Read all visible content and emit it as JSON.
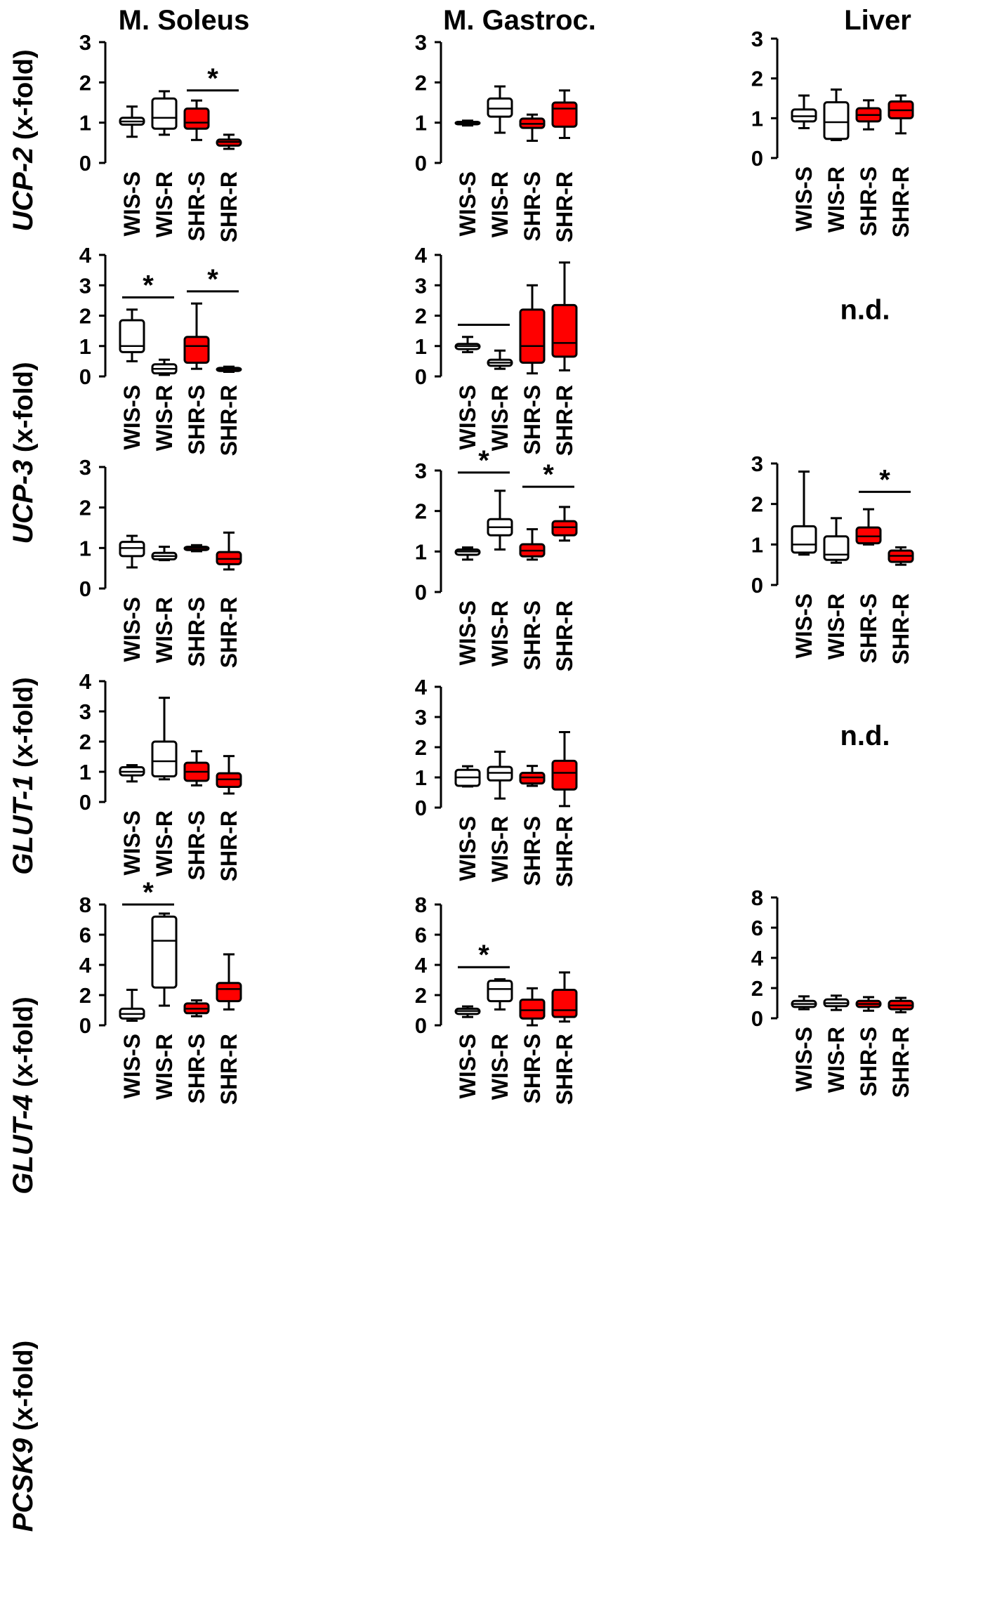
{
  "chart_data": {
    "type": "boxplot",
    "columns": [
      "M. Soleus",
      "M. Gastroc.",
      "Liver"
    ],
    "categories": [
      "WIS-S",
      "WIS-R",
      "SHR-S",
      "SHR-R"
    ],
    "category_colors": [
      "#ffffff",
      "#ffffff",
      "#ff0000",
      "#ff0000"
    ],
    "rows": [
      {
        "gene": "UCP-2",
        "unit": " (x-fold)",
        "ylim": [
          0,
          3
        ],
        "ticks": [
          0,
          1,
          2,
          3
        ]
      },
      {
        "gene": "UCP-3",
        "unit": " (x-fold)",
        "ylim": [
          0,
          4
        ],
        "ticks": [
          0,
          1,
          2,
          3,
          4
        ]
      },
      {
        "gene": "GLUT-1",
        "unit": " (x-fold)",
        "ylim": [
          0,
          3
        ],
        "ticks": [
          0,
          1,
          2,
          3
        ]
      },
      {
        "gene": "GLUT-4",
        "unit": " (x-fold)",
        "ylim": [
          0,
          4
        ],
        "ticks": [
          0,
          1,
          2,
          3,
          4
        ]
      },
      {
        "gene": "PCSK9",
        "unit": " (x-fold)",
        "ylim": [
          0,
          8
        ],
        "ticks": [
          0,
          2,
          4,
          6,
          8
        ]
      }
    ],
    "panels": [
      {
        "row": 0,
        "col": 0,
        "ylim": [
          0,
          3
        ],
        "ticks": [
          0,
          1,
          2,
          3
        ],
        "boxes": [
          {
            "category": "WIS-S",
            "min": 0.65,
            "q1": 0.95,
            "median": 1.03,
            "q3": 1.12,
            "max": 1.4
          },
          {
            "category": "WIS-R",
            "min": 0.7,
            "q1": 0.85,
            "median": 1.12,
            "q3": 1.6,
            "max": 1.78
          },
          {
            "category": "SHR-S",
            "min": 0.57,
            "q1": 0.85,
            "median": 1.0,
            "q3": 1.35,
            "max": 1.55
          },
          {
            "category": "SHR-R",
            "min": 0.35,
            "q1": 0.43,
            "median": 0.52,
            "q3": 0.58,
            "max": 0.7
          }
        ],
        "significance": [
          {
            "from": "SHR-S",
            "to": "SHR-R",
            "y": 1.8,
            "label": "*"
          }
        ]
      },
      {
        "row": 0,
        "col": 1,
        "ylim": [
          0,
          3
        ],
        "ticks": [
          0,
          1,
          2,
          3
        ],
        "boxes": [
          {
            "category": "WIS-S",
            "min": 0.93,
            "q1": 0.96,
            "median": 1.0,
            "q3": 1.02,
            "max": 1.05
          },
          {
            "category": "WIS-R",
            "min": 0.75,
            "q1": 1.15,
            "median": 1.35,
            "q3": 1.6,
            "max": 1.9
          },
          {
            "category": "SHR-S",
            "min": 0.55,
            "q1": 0.87,
            "median": 0.97,
            "q3": 1.1,
            "max": 1.2
          },
          {
            "category": "SHR-R",
            "min": 0.62,
            "q1": 0.9,
            "median": 1.35,
            "q3": 1.5,
            "max": 1.8
          }
        ],
        "significance": []
      },
      {
        "row": 0,
        "col": 2,
        "ylim": [
          0,
          3
        ],
        "ticks": [
          0,
          1,
          2,
          3
        ],
        "boxes": [
          {
            "category": "WIS-S",
            "min": 0.75,
            "q1": 0.92,
            "median": 1.05,
            "q3": 1.22,
            "max": 1.57
          },
          {
            "category": "WIS-R",
            "min": 0.45,
            "q1": 0.48,
            "median": 0.9,
            "q3": 1.4,
            "max": 1.72
          },
          {
            "category": "SHR-S",
            "min": 0.72,
            "q1": 0.92,
            "median": 1.08,
            "q3": 1.25,
            "max": 1.45
          },
          {
            "category": "SHR-R",
            "min": 0.62,
            "q1": 1.0,
            "median": 1.2,
            "q3": 1.42,
            "max": 1.57
          }
        ],
        "significance": []
      },
      {
        "row": 1,
        "col": 0,
        "ylim": [
          0,
          4
        ],
        "ticks": [
          0,
          1,
          2,
          3,
          4
        ],
        "boxes": [
          {
            "category": "WIS-S",
            "min": 0.5,
            "q1": 0.8,
            "median": 1.0,
            "q3": 1.85,
            "max": 2.2
          },
          {
            "category": "WIS-R",
            "min": 0.05,
            "q1": 0.1,
            "median": 0.25,
            "q3": 0.4,
            "max": 0.55
          },
          {
            "category": "SHR-S",
            "min": 0.25,
            "q1": 0.45,
            "median": 1.0,
            "q3": 1.3,
            "max": 2.4
          },
          {
            "category": "SHR-R",
            "min": 0.15,
            "q1": 0.18,
            "median": 0.24,
            "q3": 0.28,
            "max": 0.32
          }
        ],
        "significance": [
          {
            "from": "WIS-S",
            "to": "WIS-R",
            "y": 2.6,
            "label": "*"
          },
          {
            "from": "SHR-S",
            "to": "SHR-R",
            "y": 2.8,
            "label": "*"
          }
        ]
      },
      {
        "row": 1,
        "col": 1,
        "ylim": [
          0,
          4
        ],
        "ticks": [
          0,
          1,
          2,
          3,
          4
        ],
        "boxes": [
          {
            "category": "WIS-S",
            "min": 0.8,
            "q1": 0.9,
            "median": 1.0,
            "q3": 1.07,
            "max": 1.3
          },
          {
            "category": "WIS-R",
            "min": 0.25,
            "q1": 0.35,
            "median": 0.45,
            "q3": 0.55,
            "max": 0.85
          },
          {
            "category": "SHR-S",
            "min": 0.1,
            "q1": 0.45,
            "median": 1.0,
            "q3": 2.2,
            "max": 3.0
          },
          {
            "category": "SHR-R",
            "min": 0.2,
            "q1": 0.65,
            "median": 1.1,
            "q3": 2.35,
            "max": 3.75
          }
        ],
        "significance": [
          {
            "from": "WIS-S",
            "to": "WIS-R",
            "y": 1.7,
            "label": ""
          }
        ]
      },
      {
        "row": 1,
        "col": 2,
        "na": "n.d."
      },
      {
        "row": 2,
        "col": 0,
        "ylim": [
          0,
          3
        ],
        "ticks": [
          0,
          1,
          2,
          3
        ],
        "boxes": [
          {
            "category": "WIS-S",
            "min": 0.52,
            "q1": 0.8,
            "median": 1.0,
            "q3": 1.15,
            "max": 1.3
          },
          {
            "category": "WIS-R",
            "min": 0.7,
            "q1": 0.72,
            "median": 0.8,
            "q3": 0.88,
            "max": 1.03
          },
          {
            "category": "SHR-S",
            "min": 0.92,
            "q1": 0.95,
            "median": 1.0,
            "q3": 1.03,
            "max": 1.07
          },
          {
            "category": "SHR-R",
            "min": 0.47,
            "q1": 0.6,
            "median": 0.73,
            "q3": 0.9,
            "max": 1.38
          }
        ],
        "significance": []
      },
      {
        "row": 2,
        "col": 1,
        "ylim": [
          0,
          3
        ],
        "ticks": [
          0,
          1,
          2,
          3
        ],
        "boxes": [
          {
            "category": "WIS-S",
            "min": 0.8,
            "q1": 0.92,
            "median": 1.0,
            "q3": 1.05,
            "max": 1.1
          },
          {
            "category": "WIS-R",
            "min": 1.05,
            "q1": 1.4,
            "median": 1.6,
            "q3": 1.8,
            "max": 2.5
          },
          {
            "category": "SHR-S",
            "min": 0.8,
            "q1": 0.88,
            "median": 1.02,
            "q3": 1.18,
            "max": 1.55
          },
          {
            "category": "SHR-R",
            "min": 1.27,
            "q1": 1.4,
            "median": 1.6,
            "q3": 1.75,
            "max": 2.1
          }
        ],
        "significance": [
          {
            "from": "WIS-S",
            "to": "WIS-R",
            "y": 2.95,
            "label": "*"
          },
          {
            "from": "SHR-S",
            "to": "SHR-R",
            "y": 2.6,
            "label": "*"
          }
        ]
      },
      {
        "row": 2,
        "col": 2,
        "ylim": [
          0,
          3
        ],
        "ticks": [
          0,
          1,
          2,
          3
        ],
        "boxes": [
          {
            "category": "WIS-S",
            "min": 0.75,
            "q1": 0.8,
            "median": 1.0,
            "q3": 1.45,
            "max": 2.8
          },
          {
            "category": "WIS-R",
            "min": 0.55,
            "q1": 0.62,
            "median": 0.75,
            "q3": 1.2,
            "max": 1.65
          },
          {
            "category": "SHR-S",
            "min": 1.0,
            "q1": 1.03,
            "median": 1.2,
            "q3": 1.42,
            "max": 1.87
          },
          {
            "category": "SHR-R",
            "min": 0.5,
            "q1": 0.57,
            "median": 0.72,
            "q3": 0.85,
            "max": 0.93
          }
        ],
        "significance": [
          {
            "from": "SHR-S",
            "to": "SHR-R",
            "y": 2.3,
            "label": "*"
          }
        ]
      },
      {
        "row": 3,
        "col": 0,
        "ylim": [
          0,
          4
        ],
        "ticks": [
          0,
          1,
          2,
          3,
          4
        ],
        "boxes": [
          {
            "category": "WIS-S",
            "min": 0.68,
            "q1": 0.88,
            "median": 1.0,
            "q3": 1.15,
            "max": 1.22
          },
          {
            "category": "WIS-R",
            "min": 0.75,
            "q1": 0.85,
            "median": 1.35,
            "q3": 2.0,
            "max": 3.45
          },
          {
            "category": "SHR-S",
            "min": 0.55,
            "q1": 0.7,
            "median": 1.0,
            "q3": 1.3,
            "max": 1.68
          },
          {
            "category": "SHR-R",
            "min": 0.28,
            "q1": 0.5,
            "median": 0.75,
            "q3": 0.95,
            "max": 1.52
          }
        ],
        "significance": []
      },
      {
        "row": 3,
        "col": 1,
        "ylim": [
          0,
          4
        ],
        "ticks": [
          0,
          1,
          2,
          3,
          4
        ],
        "boxes": [
          {
            "category": "WIS-S",
            "min": 0.7,
            "q1": 0.72,
            "median": 1.0,
            "q3": 1.25,
            "max": 1.37
          },
          {
            "category": "WIS-R",
            "min": 0.3,
            "q1": 0.9,
            "median": 1.15,
            "q3": 1.35,
            "max": 1.85
          },
          {
            "category": "SHR-S",
            "min": 0.72,
            "q1": 0.8,
            "median": 1.0,
            "q3": 1.15,
            "max": 1.38
          },
          {
            "category": "SHR-R",
            "min": 0.05,
            "q1": 0.6,
            "median": 1.15,
            "q3": 1.55,
            "max": 2.5
          }
        ],
        "significance": []
      },
      {
        "row": 3,
        "col": 2,
        "na": "n.d."
      },
      {
        "row": 4,
        "col": 0,
        "ylim": [
          0,
          8
        ],
        "ticks": [
          0,
          2,
          4,
          6,
          8
        ],
        "boxes": [
          {
            "category": "WIS-S",
            "min": 0.3,
            "q1": 0.45,
            "median": 0.75,
            "q3": 1.1,
            "max": 2.35
          },
          {
            "category": "WIS-R",
            "min": 1.3,
            "q1": 2.5,
            "median": 5.6,
            "q3": 7.2,
            "max": 7.4
          },
          {
            "category": "SHR-S",
            "min": 0.6,
            "q1": 0.8,
            "median": 1.1,
            "q3": 1.45,
            "max": 1.65
          },
          {
            "category": "SHR-R",
            "min": 1.05,
            "q1": 1.6,
            "median": 2.4,
            "q3": 2.8,
            "max": 4.7
          }
        ],
        "significance": [
          {
            "from": "WIS-S",
            "to": "WIS-R",
            "y": 8.0,
            "label": "*"
          }
        ]
      },
      {
        "row": 4,
        "col": 1,
        "ylim": [
          0,
          8
        ],
        "ticks": [
          0,
          2,
          4,
          6,
          8
        ],
        "boxes": [
          {
            "category": "WIS-S",
            "min": 0.55,
            "q1": 0.75,
            "median": 0.95,
            "q3": 1.1,
            "max": 1.25
          },
          {
            "category": "WIS-R",
            "min": 1.05,
            "q1": 1.6,
            "median": 2.4,
            "q3": 2.95,
            "max": 3.05
          },
          {
            "category": "SHR-S",
            "min": 0.0,
            "q1": 0.45,
            "median": 1.0,
            "q3": 1.7,
            "max": 2.45
          },
          {
            "category": "SHR-R",
            "min": 0.25,
            "q1": 0.55,
            "median": 1.0,
            "q3": 2.35,
            "max": 3.5
          }
        ],
        "significance": [
          {
            "from": "WIS-S",
            "to": "WIS-R",
            "y": 3.85,
            "label": "*"
          }
        ]
      },
      {
        "row": 4,
        "col": 2,
        "ylim": [
          0,
          8
        ],
        "ticks": [
          0,
          2,
          4,
          6,
          8
        ],
        "boxes": [
          {
            "category": "WIS-S",
            "min": 0.6,
            "q1": 0.75,
            "median": 0.95,
            "q3": 1.15,
            "max": 1.45
          },
          {
            "category": "WIS-R",
            "min": 0.55,
            "q1": 0.8,
            "median": 1.0,
            "q3": 1.25,
            "max": 1.5
          },
          {
            "category": "SHR-S",
            "min": 0.5,
            "q1": 0.75,
            "median": 0.95,
            "q3": 1.15,
            "max": 1.4
          },
          {
            "category": "SHR-R",
            "min": 0.4,
            "q1": 0.6,
            "median": 0.85,
            "q3": 1.15,
            "max": 1.35
          }
        ],
        "significance": []
      }
    ]
  }
}
